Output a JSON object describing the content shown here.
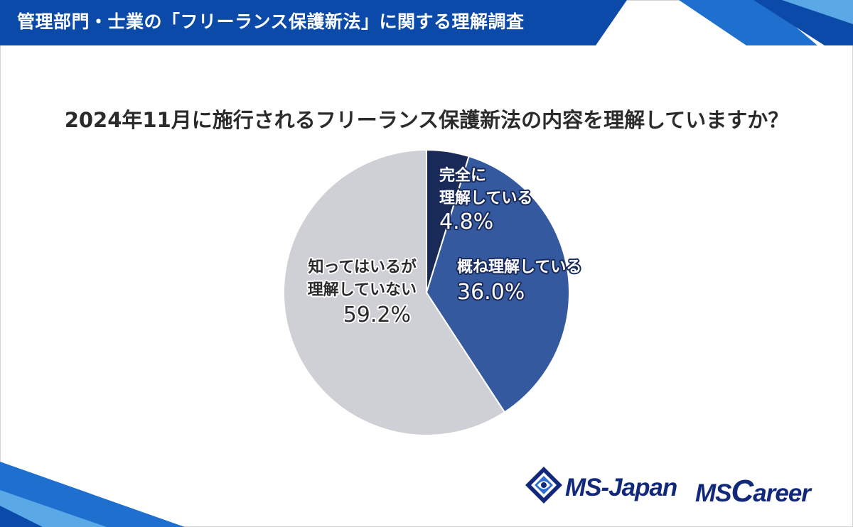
{
  "header": {
    "title": "管理部門・士業の「フリーランス保護新法」に関する理解調査"
  },
  "colors": {
    "header_blue": "#0b4aa8",
    "accent_light_blue": "#5aa9e6",
    "slice_dark_navy": "#1a2a58",
    "slice_blue": "#34599f",
    "slice_gray": "#cfd0d5",
    "logo_navy": "#12287a"
  },
  "chart_data": {
    "type": "pie",
    "title": "2024年11月に施行されるフリーランス保護新法の内容を理解していますか？",
    "slices": [
      {
        "label_lines": [
          "完全に",
          "理解している"
        ],
        "value": 4.8,
        "value_label": "4.8%",
        "color": "#1a2a58"
      },
      {
        "label_lines": [
          "概ね理解している"
        ],
        "value": 36.0,
        "value_label": "36.0%",
        "color": "#34599f"
      },
      {
        "label_lines": [
          "知ってはいるが",
          "理解していない"
        ],
        "value": 59.2,
        "value_label": "59.2%",
        "color": "#cfd0d5"
      }
    ]
  },
  "logos": {
    "ms_japan": "MS-Japan",
    "ms_career_prefix": "MS",
    "ms_career_initial": "C",
    "ms_career_rest": "areer"
  }
}
